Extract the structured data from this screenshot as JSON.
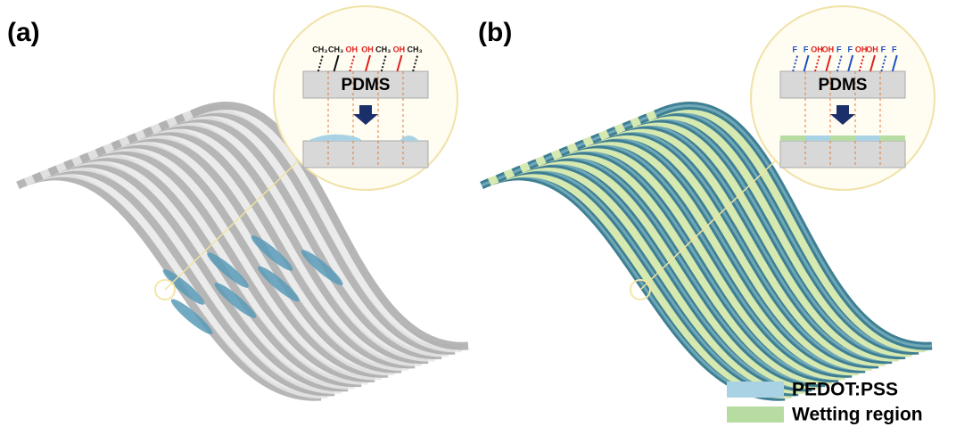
{
  "panels": [
    {
      "label": "(a)",
      "substrate": "PDMS",
      "groups": [
        {
          "text": "CH₃",
          "color": "#111111"
        },
        {
          "text": "CH₃",
          "color": "#111111"
        },
        {
          "text": "OH",
          "color": "#e0201c"
        },
        {
          "text": "OH",
          "color": "#e0201c"
        },
        {
          "text": "CH₃",
          "color": "#111111"
        },
        {
          "text": "OH",
          "color": "#e0201c"
        },
        {
          "text": "CH₃",
          "color": "#111111"
        }
      ]
    },
    {
      "label": "(b)",
      "substrate": "PDMS",
      "groups": [
        {
          "text": "F",
          "color": "#1c4fc4"
        },
        {
          "text": "F",
          "color": "#1c4fc4"
        },
        {
          "text": "OH",
          "color": "#e0201c"
        },
        {
          "text": "OH",
          "color": "#e0201c"
        },
        {
          "text": "F",
          "color": "#1c4fc4"
        },
        {
          "text": "F",
          "color": "#1c4fc4"
        },
        {
          "text": "OH",
          "color": "#e0201c"
        },
        {
          "text": "OH",
          "color": "#e0201c"
        },
        {
          "text": "F",
          "color": "#1c4fc4"
        },
        {
          "text": "F",
          "color": "#1c4fc4"
        }
      ]
    }
  ],
  "legend": [
    {
      "label": "PEDOT:PSS",
      "color": "#a9d3e4"
    },
    {
      "label": "Wetting region",
      "color": "#b7dca2"
    }
  ]
}
